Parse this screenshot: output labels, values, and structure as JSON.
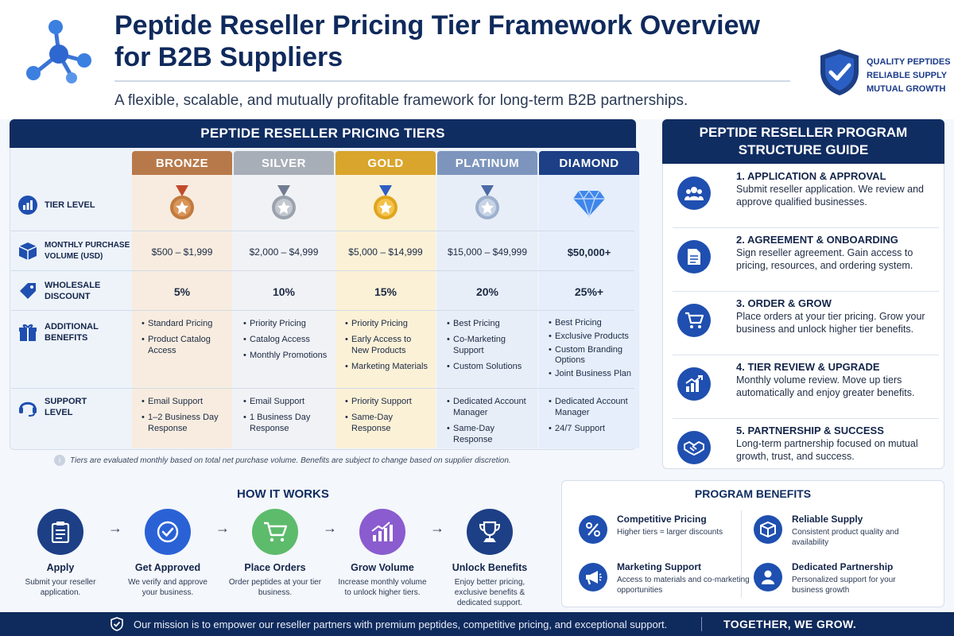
{
  "header": {
    "title_line1": "Peptide Reseller Pricing Tier Framework Overview",
    "title_line2": "for B2B Suppliers",
    "subtitle": "A flexible, scalable, and mutually profitable framework for long-term B2B partnerships.",
    "taglines": [
      "QUALITY PEPTIDES",
      "RELIABLE SUPPLY",
      "MUTUAL GROWTH"
    ],
    "icons": {
      "logo": "molecule-icon",
      "badge": "shield-check-icon"
    }
  },
  "tiers": {
    "title": "PEPTIDE RESELLER PRICING TIERS",
    "row_labels": {
      "tier_level": "TIER LEVEL",
      "volume_1": "MONTHLY PURCHASE",
      "volume_2": "VOLUME (USD)",
      "discount_1": "WHOLESALE",
      "discount_2": "DISCOUNT",
      "benefits_1": "ADDITIONAL",
      "benefits_2": "BENEFITS",
      "support_1": "SUPPORT",
      "support_2": "LEVEL"
    },
    "columns": [
      {
        "name": "BRONZE",
        "color": "#b8794a",
        "body": "#f7ecdf",
        "icon": "bronze-medal-icon",
        "volume": "$500 – $1,999",
        "discount": "5%",
        "benefits": [
          "Standard Pricing",
          "Product Catalog Access"
        ],
        "support": [
          "Email Support",
          "1–2 Business Day Response"
        ]
      },
      {
        "name": "SILVER",
        "color": "#a8aeb8",
        "body": "#f1f2f5",
        "icon": "silver-medal-icon",
        "volume": "$2,000 – $4,999",
        "discount": "10%",
        "benefits": [
          "Priority Pricing",
          "Catalog Access",
          "Monthly Promotions"
        ],
        "support": [
          "Email Support",
          "1 Business Day Response"
        ]
      },
      {
        "name": "GOLD",
        "color": "#d9a52c",
        "body": "#fbf1d7",
        "icon": "gold-medal-icon",
        "volume": "$5,000 – $14,999",
        "discount": "15%",
        "benefits": [
          "Priority Pricing",
          "Early Access to New Products",
          "Marketing Materials"
        ],
        "support": [
          "Priority Support",
          "Same-Day Response"
        ]
      },
      {
        "name": "PLATINUM",
        "color": "#7d95bd",
        "body": "#e8eef7",
        "icon": "platinum-medal-icon",
        "volume": "$15,000 – $49,999",
        "discount": "20%",
        "benefits": [
          "Best Pricing",
          "Co-Marketing Support",
          "Custom Solutions"
        ],
        "support": [
          "Dedicated Account Manager",
          "Same-Day Response"
        ]
      },
      {
        "name": "DIAMOND",
        "color": "#1c3f86",
        "body": "#e5eefa",
        "icon": "diamond-icon",
        "volume": "$50,000+",
        "discount": "25%+",
        "benefits": [
          "Best Pricing",
          "Exclusive Products",
          "Custom Branding Options",
          "Joint Business Plan"
        ],
        "support": [
          "Dedicated Account Manager",
          "24/7 Support"
        ]
      }
    ],
    "note": "Tiers are evaluated monthly based on total net purchase volume. Benefits are subject to change based on supplier discretion."
  },
  "structure": {
    "title_line1": "PEPTIDE RESELLER PROGRAM",
    "title_line2": "STRUCTURE GUIDE",
    "steps": [
      {
        "title": "1. APPLICATION & APPROVAL",
        "desc": "Submit reseller application. We review and approve qualified businesses.",
        "icon": "users-icon"
      },
      {
        "title": "2. AGREEMENT & ONBOARDING",
        "desc": "Sign reseller agreement. Gain access to pricing, resources, and ordering system.",
        "icon": "document-icon"
      },
      {
        "title": "3. ORDER & GROW",
        "desc": "Place orders at your tier pricing. Grow your business and unlock higher tier benefits.",
        "icon": "cart-icon"
      },
      {
        "title": "4. TIER REVIEW & UPGRADE",
        "desc": "Monthly volume review. Move up tiers automatically and enjoy greater benefits.",
        "icon": "growth-chart-icon"
      },
      {
        "title": "5. PARTNERSHIP & SUCCESS",
        "desc": "Long-term partnership focused on mutual growth, trust, and success.",
        "icon": "handshake-icon"
      }
    ]
  },
  "how": {
    "title": "HOW IT WORKS",
    "items": [
      {
        "title": "Apply",
        "desc": "Submit your reseller application.",
        "color": "#1c3f86",
        "icon": "clipboard-icon"
      },
      {
        "title": "Get Approved",
        "desc": "We verify and approve your business.",
        "color": "#2a62d6",
        "icon": "check-circle-icon"
      },
      {
        "title": "Place Orders",
        "desc": "Order peptides at your tier business.",
        "color": "#5dbb6c",
        "icon": "cart-icon"
      },
      {
        "title": "Grow Volume",
        "desc": "Increase monthly volume to unlock higher tiers.",
        "color": "#8a5ccf",
        "icon": "growth-chart-icon"
      },
      {
        "title": "Unlock Benefits",
        "desc": "Enjoy better pricing, exclusive benefits & dedicated support.",
        "color": "#1c3f86",
        "icon": "trophy-icon"
      }
    ]
  },
  "benefits": {
    "title": "PROGRAM BENEFITS",
    "items": [
      {
        "title": "Competitive Pricing",
        "desc": "Higher tiers = larger discounts",
        "icon": "percent-icon"
      },
      {
        "title": "Reliable Supply",
        "desc": "Consistent product quality and availability",
        "icon": "box-icon"
      },
      {
        "title": "Marketing Support",
        "desc": "Access to materials and co-marketing opportunities",
        "icon": "megaphone-icon"
      },
      {
        "title": "Dedicated Partnership",
        "desc": "Personalized support for your business growth",
        "icon": "person-icon"
      }
    ]
  },
  "footer": {
    "mission": "Our mission is to empower our reseller partners with premium peptides, competitive pricing, and exceptional support.",
    "slogan": "TOGETHER, WE GROW."
  }
}
